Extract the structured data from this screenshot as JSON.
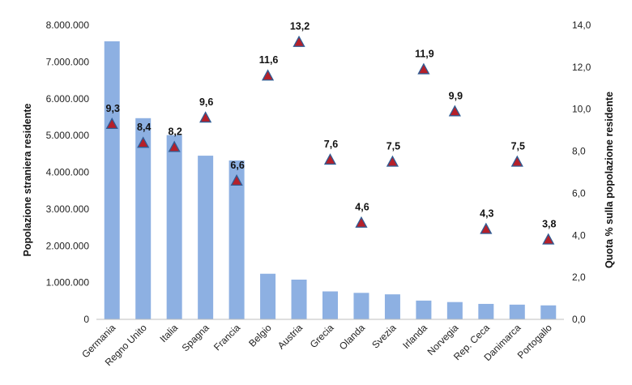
{
  "chart_data": {
    "type": "bar+scatter",
    "categories": [
      "Germania",
      "Regno Unito",
      "Italia",
      "Spagna",
      "Francia",
      "Belgio",
      "Austria",
      "Grecia",
      "Olanda",
      "Svezia",
      "Irlanda",
      "Norvegia",
      "Rep. Ceca",
      "Danimarca",
      "Portogallo"
    ],
    "series": [
      {
        "name": "Popolazione straniera residente",
        "type": "bar",
        "axis": "left",
        "color": "#8db0e2",
        "values": [
          7560000,
          5470000,
          5010000,
          4450000,
          4320000,
          1240000,
          1080000,
          760000,
          720000,
          680000,
          510000,
          470000,
          420000,
          400000,
          380000
        ]
      },
      {
        "name": "Quota % sulla popolazione residente",
        "type": "scatter",
        "axis": "right",
        "marker": "triangle",
        "fill_color": "#b5202a",
        "edge_color": "#2f5c94",
        "values": [
          9.3,
          8.4,
          8.2,
          9.6,
          6.6,
          11.6,
          13.2,
          7.6,
          4.6,
          7.5,
          11.9,
          9.9,
          4.3,
          7.5,
          3.8
        ],
        "labels": [
          "9,3",
          "8,4",
          "8,2",
          "9,6",
          "6,6",
          "11,6",
          "13,2",
          "7,6",
          "4,6",
          "7,5",
          "11,9",
          "9,9",
          "4,3",
          "7,5",
          "3,8"
        ]
      }
    ],
    "ylabel": "Popolazione straniera residente",
    "y2label": "Quota % sulla popolazione residente",
    "ylim": [
      0,
      8000000
    ],
    "y2lim": [
      0,
      14
    ],
    "yticks": [
      "0",
      "1.000.000",
      "2.000.000",
      "3.000.000",
      "4.000.000",
      "5.000.000",
      "6.000.000",
      "7.000.000",
      "8.000.000"
    ],
    "y2ticks": [
      "0,0",
      "2,0",
      "4,0",
      "6,0",
      "8,0",
      "10,0",
      "12,0",
      "14,0"
    ],
    "grid": false,
    "legend": "none"
  }
}
